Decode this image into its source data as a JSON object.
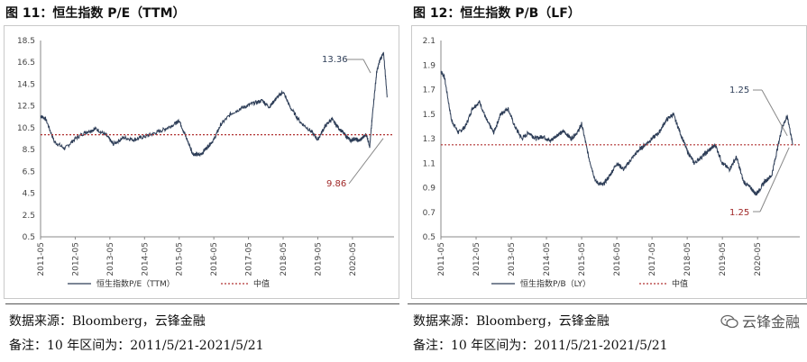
{
  "left": {
    "title": "图 11：恒生指数 P/E（TTM）",
    "source": "数据来源：Bloomberg，云锋金融",
    "note": "备注：10 年区间为：2011/5/21-2021/5/21"
  },
  "right": {
    "title": "图 12：恒生指数 P/B（LF）",
    "source": "数据来源：Bloomberg，云锋金融",
    "note": "备注：10 年区间为：2011/5/21-2021/5/21"
  },
  "watermark": {
    "text": "云锋金融",
    "icon": "wechat-icon"
  },
  "colors": {
    "series": "#2d3d57",
    "median": "#b03030",
    "label_dark": "#2d3d57",
    "label_red": "#a02828"
  },
  "chart_data": [
    {
      "type": "line",
      "title": "恒生指数 P/E（TTM）",
      "categories": [
        "2011-05",
        "2012-05",
        "2013-05",
        "2014-05",
        "2015-05",
        "2016-05",
        "2017-05",
        "2018-05",
        "2019-05",
        "2020-05"
      ],
      "yticks": [
        "18.5",
        "16.5",
        "14.5",
        "12.5",
        "10.5",
        "8.5",
        "6.5",
        "4.5",
        "2.5",
        "0.5"
      ],
      "ylim": [
        0.5,
        18.5
      ],
      "series": [
        {
          "name": "恒生指数P/E（TTM）",
          "x": [
            0,
            0.15,
            0.4,
            0.7,
            1.0,
            1.3,
            1.6,
            1.9,
            2.1,
            2.4,
            2.7,
            3.0,
            3.3,
            3.6,
            3.9,
            4.0,
            4.2,
            4.4,
            4.6,
            4.8,
            5.0,
            5.2,
            5.5,
            5.8,
            6.1,
            6.4,
            6.6,
            6.8,
            7.0,
            7.2,
            7.5,
            7.8,
            8.0,
            8.2,
            8.4,
            8.6,
            8.8,
            8.95,
            9.05,
            9.2,
            9.4,
            9.5,
            9.6,
            9.7,
            9.8,
            9.9,
            10.0
          ],
          "values": [
            11.6,
            11.3,
            9.2,
            8.6,
            9.5,
            10.1,
            10.4,
            9.8,
            9.0,
            9.6,
            9.4,
            9.7,
            10.0,
            10.4,
            10.9,
            11.2,
            9.6,
            8.1,
            8.0,
            8.7,
            9.4,
            10.8,
            11.8,
            12.3,
            12.7,
            13.0,
            12.4,
            13.2,
            13.8,
            12.4,
            11.0,
            10.2,
            9.4,
            10.6,
            11.3,
            10.5,
            9.8,
            9.3,
            9.5,
            9.3,
            9.9,
            8.8,
            12.5,
            15.6,
            16.8,
            17.3,
            13.4
          ]
        },
        {
          "name": "中值",
          "x": [
            0,
            10
          ],
          "values": [
            9.86,
            9.86
          ]
        }
      ],
      "legend": [
        "恒生指数P/E（TTM）",
        "中值"
      ],
      "annotations": [
        {
          "text": "13.36",
          "target": "current"
        },
        {
          "text": "9.86",
          "target": "median"
        }
      ]
    },
    {
      "type": "line",
      "title": "恒生指数 P/B（LF）",
      "categories": [
        "2011-05",
        "2012-05",
        "2013-05",
        "2014-05",
        "2015-05",
        "2016-05",
        "2017-05",
        "2018-05",
        "2019-05",
        "2020-05"
      ],
      "yticks": [
        "2.1",
        "1.9",
        "1.7",
        "1.5",
        "1.3",
        "1.1",
        "0.9",
        "0.7",
        "0.5"
      ],
      "ylim": [
        0.5,
        2.1
      ],
      "series": [
        {
          "name": "恒生指数P/B（LY）",
          "x": [
            0,
            0.1,
            0.3,
            0.5,
            0.7,
            0.9,
            1.1,
            1.3,
            1.5,
            1.7,
            1.9,
            2.1,
            2.3,
            2.5,
            2.7,
            2.9,
            3.1,
            3.3,
            3.5,
            3.7,
            3.9,
            4.0,
            4.2,
            4.4,
            4.6,
            4.8,
            5.0,
            5.2,
            5.4,
            5.6,
            5.8,
            6.0,
            6.2,
            6.4,
            6.6,
            6.8,
            7.0,
            7.2,
            7.4,
            7.6,
            7.8,
            8.0,
            8.2,
            8.4,
            8.6,
            8.8,
            8.95,
            9.05,
            9.2,
            9.4,
            9.55,
            9.7,
            9.85,
            10.0
          ],
          "values": [
            1.85,
            1.8,
            1.45,
            1.35,
            1.4,
            1.55,
            1.6,
            1.45,
            1.35,
            1.5,
            1.55,
            1.4,
            1.3,
            1.35,
            1.3,
            1.32,
            1.28,
            1.33,
            1.36,
            1.3,
            1.36,
            1.42,
            1.15,
            0.95,
            0.92,
            1.0,
            1.1,
            1.05,
            1.13,
            1.2,
            1.25,
            1.3,
            1.35,
            1.45,
            1.5,
            1.35,
            1.2,
            1.1,
            1.15,
            1.2,
            1.25,
            1.1,
            1.05,
            1.15,
            0.95,
            0.9,
            0.85,
            0.88,
            0.95,
            1.0,
            1.2,
            1.4,
            1.48,
            1.25
          ]
        },
        {
          "name": "中值",
          "x": [
            0,
            10
          ],
          "values": [
            1.25,
            1.25
          ]
        }
      ],
      "legend": [
        "恒生指数P/B（LY）",
        "中值"
      ],
      "annotations": [
        {
          "text": "1.25",
          "target": "current"
        },
        {
          "text": "1.25",
          "target": "median"
        }
      ]
    }
  ]
}
